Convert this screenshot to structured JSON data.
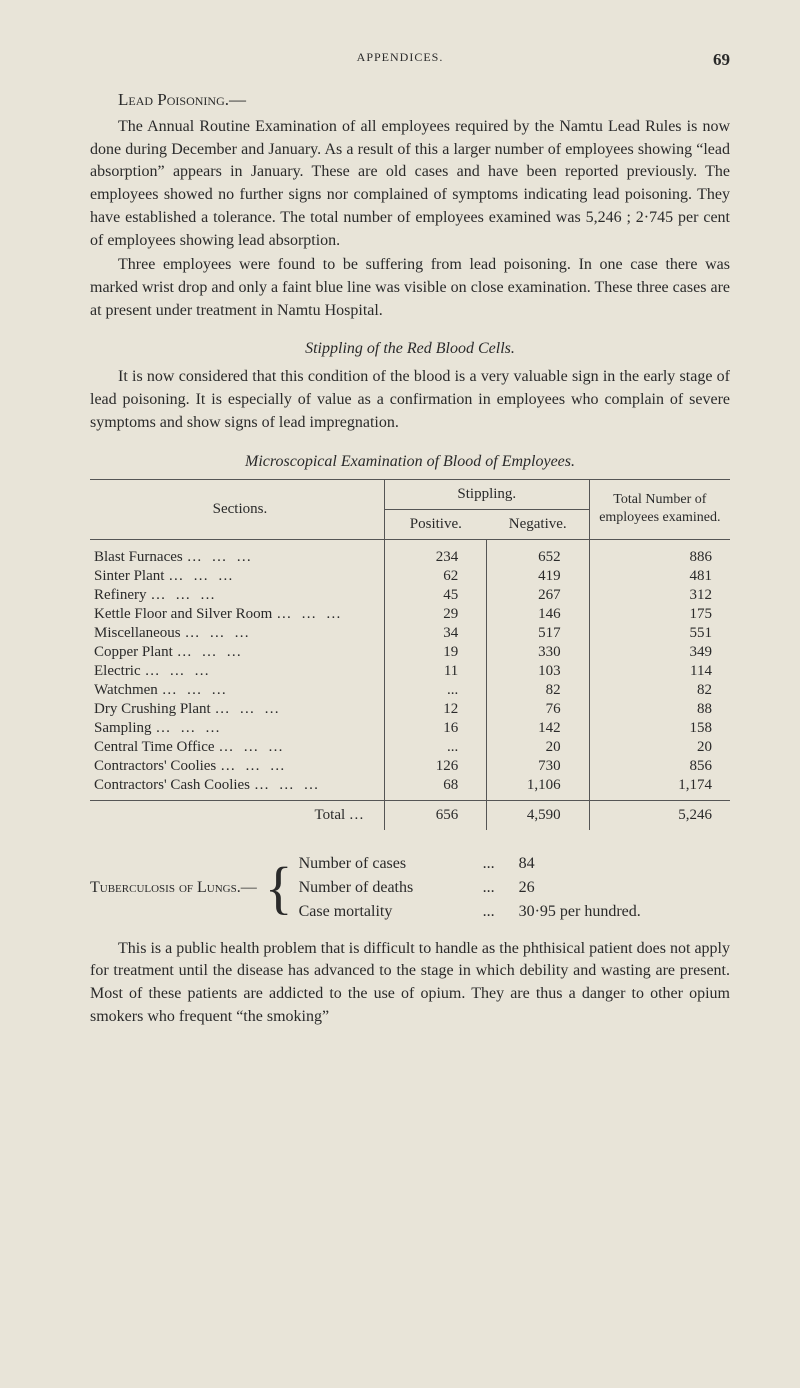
{
  "header": {
    "running_title": "APPENDICES.",
    "page_number": "69"
  },
  "lead_poisoning": {
    "heading": "Lead Poisoning.—",
    "para1": "The Annual Routine Examination of all employees required by the Namtu Lead Rules is now done during December and January. As a result of this a larger number of employees showing “lead absorption” appears in January. These are old cases and have been reported previously. The employees showed no further signs nor complained of symptoms indicating lead poisoning. They have established a tolerance. The total number of employees examined was 5,246 ; 2·745 per cent of employees showing lead absorption.",
    "para2": "Three employees were found to be suffering from lead poisoning. In one case there was marked wrist drop and only a faint blue line was visible on close examination. These three cases are at present under treatment in Namtu Hospital.",
    "stippling_heading": "Stippling of the Red Blood Cells.",
    "stippling_para": "It is now considered that this condition of the blood is a very valuable sign in the early stage of lead poisoning. It is especially of value as a confirmation in employees who complain of severe symptoms and show signs of lead impregnation.",
    "table_title": "Microscopical Examination of Blood of Employees."
  },
  "table": {
    "col_sections": "Sections.",
    "col_stippling": "Stippling.",
    "col_positive": "Positive.",
    "col_negative": "Negative.",
    "col_total": "Total Number of employees examined.",
    "rows": [
      {
        "label": "Blast Furnaces",
        "pos": "234",
        "neg": "652",
        "tot": "886"
      },
      {
        "label": "Sinter Plant",
        "pos": "62",
        "neg": "419",
        "tot": "481"
      },
      {
        "label": "Refinery",
        "pos": "45",
        "neg": "267",
        "tot": "312"
      },
      {
        "label": "Kettle Floor and Silver Room",
        "pos": "29",
        "neg": "146",
        "tot": "175"
      },
      {
        "label": "Miscellaneous",
        "pos": "34",
        "neg": "517",
        "tot": "551"
      },
      {
        "label": "Copper Plant",
        "pos": "19",
        "neg": "330",
        "tot": "349"
      },
      {
        "label": "Electric",
        "pos": "11",
        "neg": "103",
        "tot": "114"
      },
      {
        "label": "Watchmen",
        "pos": "...",
        "neg": "82",
        "tot": "82"
      },
      {
        "label": "Dry Crushing Plant",
        "pos": "12",
        "neg": "76",
        "tot": "88"
      },
      {
        "label": "Sampling",
        "pos": "16",
        "neg": "142",
        "tot": "158"
      },
      {
        "label": "Central Time Office",
        "pos": "...",
        "neg": "20",
        "tot": "20"
      },
      {
        "label": "Contractors' Coolies",
        "pos": "126",
        "neg": "730",
        "tot": "856"
      },
      {
        "label": "Contractors' Cash Coolies",
        "pos": "68",
        "neg": "1,106",
        "tot": "1,174"
      }
    ],
    "total_label": "Total",
    "total_pos": "656",
    "total_neg": "4,590",
    "total_tot": "5,246"
  },
  "tuberculosis": {
    "heading": "Tuberculosis of Lungs.—",
    "cases_label": "Number of cases",
    "cases_value": "84",
    "deaths_label": "Number of deaths",
    "deaths_value": "26",
    "mortality_label": "Case mortality",
    "mortality_value": "30·95 per hundred.",
    "para": "This is a public health problem that is difficult to handle as the phthisical patient does not apply for treatment until the disease has advanced to the stage in which debility and wasting are present. Most of these patients are addicted to the use of opium. They are thus a danger to other opium smokers who frequent “the smoking”"
  },
  "dots": "..."
}
